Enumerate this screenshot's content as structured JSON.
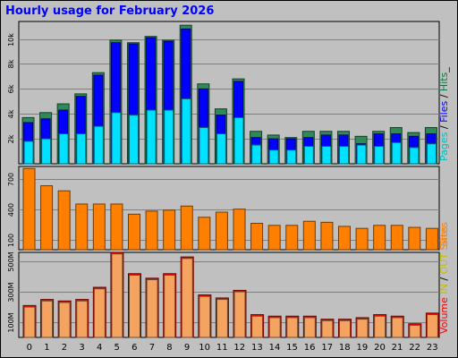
{
  "title": "Hourly usage for February 2026",
  "chart_data": {
    "type": "bar",
    "title": "Hourly usage for February 2026",
    "categories": [
      "0",
      "1",
      "2",
      "3",
      "4",
      "5",
      "6",
      "7",
      "8",
      "9",
      "10",
      "11",
      "12",
      "13",
      "14",
      "15",
      "16",
      "17",
      "18",
      "19",
      "20",
      "21",
      "22",
      "23"
    ],
    "panels": [
      {
        "id": "hits",
        "yticks": [
          {
            "v": 2000,
            "label": "2k"
          },
          {
            "v": 4000,
            "label": "4k"
          },
          {
            "v": 6000,
            "label": "6k"
          },
          {
            "v": 8000,
            "label": "8k"
          },
          {
            "v": 10000,
            "label": "10k"
          }
        ],
        "ylim": [
          0,
          11400
        ],
        "right_label": [
          {
            "text": "Pages",
            "color": "#00c0c0"
          },
          {
            "text": " / ",
            "color": "#000000"
          },
          {
            "text": "Files",
            "color": "#0000ff"
          },
          {
            "text": " / ",
            "color": "#000000"
          },
          {
            "text": "Hits",
            "color": "#008040"
          },
          {
            "text": "_",
            "color": "#000000"
          }
        ],
        "series": [
          {
            "name": "Hits",
            "color": "#2e8b57",
            "values": [
              3700,
              4100,
              4800,
              5600,
              7300,
              9900,
              9700,
              10200,
              9900,
              11100,
              6400,
              4400,
              6800,
              2600,
              2300,
              2100,
              2600,
              2600,
              2600,
              2200,
              2600,
              2900,
              2500,
              2900
            ]
          },
          {
            "name": "Files",
            "color": "#0000ff",
            "values": [
              3300,
              3600,
              4300,
              5400,
              7100,
              9700,
              9600,
              10100,
              9800,
              10800,
              6000,
              3900,
              6600,
              2100,
              2000,
              2000,
              2100,
              2300,
              2300,
              1600,
              2400,
              2400,
              2200,
              2400
            ]
          },
          {
            "name": "Pages",
            "color": "#00e0ff",
            "values": [
              1800,
              2000,
              2400,
              2400,
              3000,
              4100,
              3900,
              4300,
              4300,
              5200,
              2900,
              2400,
              3700,
              1500,
              1100,
              1100,
              1400,
              1400,
              1400,
              1500,
              1400,
              1700,
              1300,
              1600
            ]
          }
        ]
      },
      {
        "id": "sites",
        "yticks": [
          {
            "v": 100,
            "label": "100"
          },
          {
            "v": 400,
            "label": "400"
          },
          {
            "v": 700,
            "label": "700"
          }
        ],
        "ylim": [
          0,
          820
        ],
        "right_label": [
          {
            "text": "Sites",
            "color": "#ff8000"
          }
        ],
        "series": [
          {
            "name": "Sites",
            "color": "#ff8000",
            "values": [
              800,
              630,
              580,
              450,
              450,
              450,
              350,
              380,
              390,
              430,
              320,
              370,
              400,
              260,
              240,
              240,
              280,
              270,
              230,
              210,
              240,
              240,
              220,
              210
            ]
          }
        ]
      },
      {
        "id": "volume",
        "yticks": [
          {
            "v": 100,
            "label": "100M"
          },
          {
            "v": 300,
            "label": "300M"
          },
          {
            "v": 500,
            "label": "500M"
          }
        ],
        "ylim": [
          0,
          560
        ],
        "right_label": [
          {
            "text": "Volume",
            "color": "#ff0000"
          },
          {
            "text": "  ",
            "color": "#000000"
          },
          {
            "text": "IN",
            "color": "#c0c000"
          },
          {
            "text": " / ",
            "color": "#000000"
          },
          {
            "text": "OUT",
            "color": "#c0c000"
          },
          {
            "text": "  ",
            "color": "#000000"
          },
          {
            "text": "Sites",
            "color": "#ff8000"
          }
        ],
        "series": [
          {
            "name": "Volume",
            "color": "#ff0000",
            "values": [
              210,
              250,
              240,
              250,
              330,
              560,
              420,
              390,
              420,
              530,
              280,
              260,
              310,
              150,
              140,
              140,
              140,
              120,
              120,
              130,
              150,
              140,
              90,
              160
            ]
          },
          {
            "name": "Volume (light)",
            "color": "#f4a460",
            "values": [
              200,
              240,
              230,
              240,
              320,
              550,
              410,
              380,
              410,
              520,
              270,
              250,
              300,
              140,
              130,
              130,
              130,
              110,
              110,
              120,
              140,
              130,
              80,
              150
            ]
          }
        ]
      }
    ]
  }
}
